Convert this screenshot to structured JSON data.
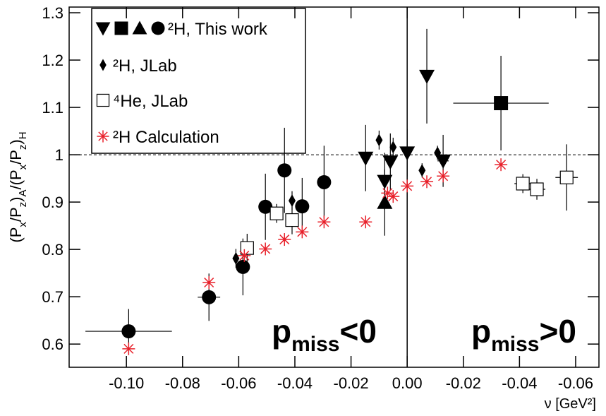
{
  "chart_data": {
    "type": "scatter",
    "xlabel": "ν [GeV²]",
    "ylabel": {
      "parts": [
        "(P",
        "x",
        "/P",
        "z",
        ")",
        "A",
        "/(P",
        "x",
        "/P",
        "z",
        ")",
        "H"
      ]
    },
    "xlim": [
      -0.1204,
      0.0683
    ],
    "ylim": [
      0.551,
      1.312
    ],
    "xticks": [
      {
        "value": -0.1,
        "label": "-0.10"
      },
      {
        "value": -0.08,
        "label": "-0.08"
      },
      {
        "value": -0.06,
        "label": "-0.06"
      },
      {
        "value": -0.04,
        "label": "-0.04"
      },
      {
        "value": -0.02,
        "label": "-0.02"
      },
      {
        "value": 0,
        "label": "0.00"
      },
      {
        "value": 0.02,
        "label": "-0.02"
      },
      {
        "value": 0.04,
        "label": "-0.04"
      },
      {
        "value": 0.06,
        "label": "-0.06"
      }
    ],
    "yticks": [
      0.6,
      0.7,
      0.8,
      0.9,
      1,
      1.1,
      1.2,
      1.3
    ],
    "reference_line": 1,
    "divider_x": 0,
    "annotations": [
      {
        "parts": [
          "p",
          "miss",
          "<0"
        ]
      },
      {
        "parts": [
          "p",
          "miss",
          ">0"
        ]
      }
    ],
    "series": [
      {
        "name": "²H, This work",
        "color": "#000000",
        "markers": [
          "triangle-down",
          "triangle-down",
          "triangle-down",
          "triangle-down",
          "triangle-down",
          "triangle-down",
          "square",
          "triangle-up",
          "circle",
          "circle",
          "circle",
          "circle",
          "circle",
          "circle",
          "circle"
        ],
        "x": [
          -0.0148,
          -0.008,
          -0.006,
          0,
          0.007,
          0.0128,
          0.0334,
          -0.008,
          -0.0992,
          -0.0706,
          -0.0585,
          -0.0505,
          -0.0437,
          -0.0374,
          -0.0296
        ],
        "values": [
          0.993,
          0.944,
          0.985,
          1.004,
          1.166,
          0.987,
          1.109,
          0.899,
          0.627,
          0.699,
          0.763,
          0.89,
          0.967,
          0.891,
          0.942
        ],
        "xerr": [
          null,
          null,
          null,
          null,
          null,
          0.002,
          0.017,
          null,
          0.0154,
          0.004,
          0.002,
          null,
          null,
          0.002,
          0.002
        ],
        "yerr": [
          0.07,
          0.06,
          0.06,
          0.05,
          0.1,
          0.055,
          0.1,
          0.07,
          0.047,
          0.05,
          0.06,
          0.07,
          0.09,
          0.06,
          0.077
        ]
      },
      {
        "name": "²H, JLab",
        "color": "#000000",
        "marker": "diamond",
        "x": [
          -0.061,
          -0.041,
          -0.01,
          -0.005,
          0.0053,
          0.0108
        ],
        "values": [
          0.781,
          0.903,
          1.031,
          1.016,
          0.967,
          1.004
        ],
        "xerr": [
          null,
          null,
          null,
          null,
          null,
          null
        ],
        "yerr": [
          0.02,
          0.02,
          0.02,
          0.02,
          0.015,
          0.015
        ]
      },
      {
        "name": "⁴He, JLab",
        "color": "#000000",
        "marker": "open-square",
        "x": [
          -0.057,
          -0.0465,
          -0.041,
          0.0412,
          0.0462,
          0.0568
        ],
        "values": [
          0.803,
          0.876,
          0.862,
          0.939,
          0.927,
          0.952
        ],
        "xerr": [
          null,
          null,
          null,
          0.003,
          0.003,
          0.004
        ],
        "yerr": [
          0.03,
          0.02,
          0.03,
          0.02,
          0.022,
          0.07
        ]
      },
      {
        "name": "²H Calculation",
        "color": "#e8202a",
        "marker": "asterisk",
        "x": [
          -0.0992,
          -0.0706,
          -0.058,
          -0.0505,
          -0.0437,
          -0.0374,
          -0.0296,
          -0.0148,
          -0.007,
          -0.005,
          0,
          0.007,
          0.0128,
          0.0334
        ],
        "values": [
          0.59,
          0.73,
          0.787,
          0.801,
          0.821,
          0.837,
          0.858,
          0.858,
          0.919,
          0.912,
          0.934,
          0.943,
          0.955,
          0.979
        ],
        "xerr": [
          null,
          null,
          null,
          null,
          null,
          null,
          null,
          null,
          null,
          null,
          null,
          null,
          null,
          null
        ],
        "yerr": [
          null,
          null,
          null,
          null,
          null,
          null,
          null,
          null,
          null,
          null,
          null,
          null,
          null,
          null
        ]
      }
    ]
  }
}
